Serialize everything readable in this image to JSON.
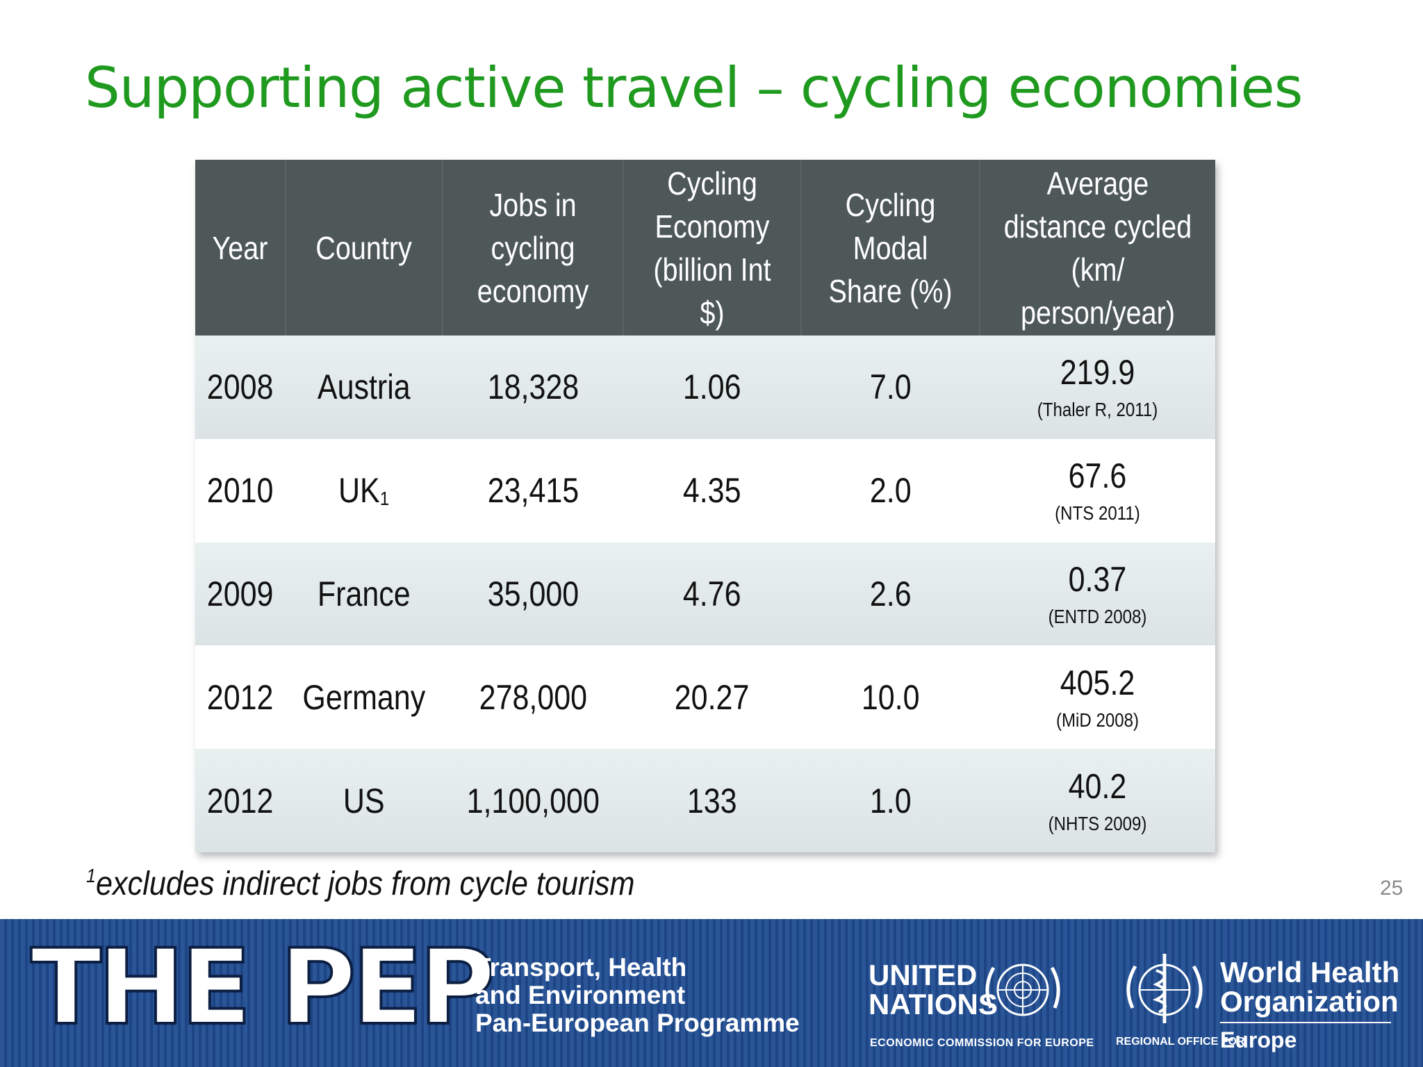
{
  "title": "Supporting active travel – cycling economies",
  "table": {
    "headers": [
      "Year",
      "Country",
      "Jobs in cycling economy",
      "Cycling Economy (billion Int $)",
      "Cycling Modal Share (%)",
      "Average distance cycled (km/ person/year)"
    ],
    "rows": [
      {
        "year": "2008",
        "country": "Austria",
        "country_sup": "",
        "jobs": "18,328",
        "economy": "1.06",
        "share": "7.0",
        "distance": "219.9",
        "source": "(Thaler R, 2011)"
      },
      {
        "year": "2010",
        "country": "UK",
        "country_sup": "1",
        "jobs": "23,415",
        "economy": "4.35",
        "share": "2.0",
        "distance": "67.6",
        "source": "(NTS 2011)"
      },
      {
        "year": "2009",
        "country": "France",
        "country_sup": "",
        "jobs": "35,000",
        "economy": "4.76",
        "share": "2.6",
        "distance": "0.37",
        "source": "(ENTD 2008)"
      },
      {
        "year": "2012",
        "country": "Germany",
        "country_sup": "",
        "jobs": "278,000",
        "economy": "20.27",
        "share": "10.0",
        "distance": "405.2",
        "source": "(MiD 2008)"
      },
      {
        "year": "2012",
        "country": "US",
        "country_sup": "",
        "jobs": "1,100,000",
        "economy": "133",
        "share": "1.0",
        "distance": "40.2",
        "source": "(NHTS 2009)"
      }
    ]
  },
  "footnote": {
    "marker": "1",
    "text": "excludes indirect jobs from cycle tourism"
  },
  "page_number": "25",
  "banner": {
    "pep_logo": "THE PEP",
    "pep_subtitle": [
      "Transport, Health",
      "and Environment",
      "Pan-European Programme"
    ],
    "un_name": [
      "UNITED",
      "NATIONS"
    ],
    "un_subtitle": "ECONOMIC COMMISSION FOR EUROPE",
    "who_name": [
      "World Health",
      "Organization"
    ],
    "who_subtitle": "REGIONAL OFFICE FOR",
    "who_region": "Europe"
  },
  "colors": {
    "title": "#1f9a1f",
    "header_bg": "#4e5858",
    "banner_bg": "#2a5698"
  }
}
